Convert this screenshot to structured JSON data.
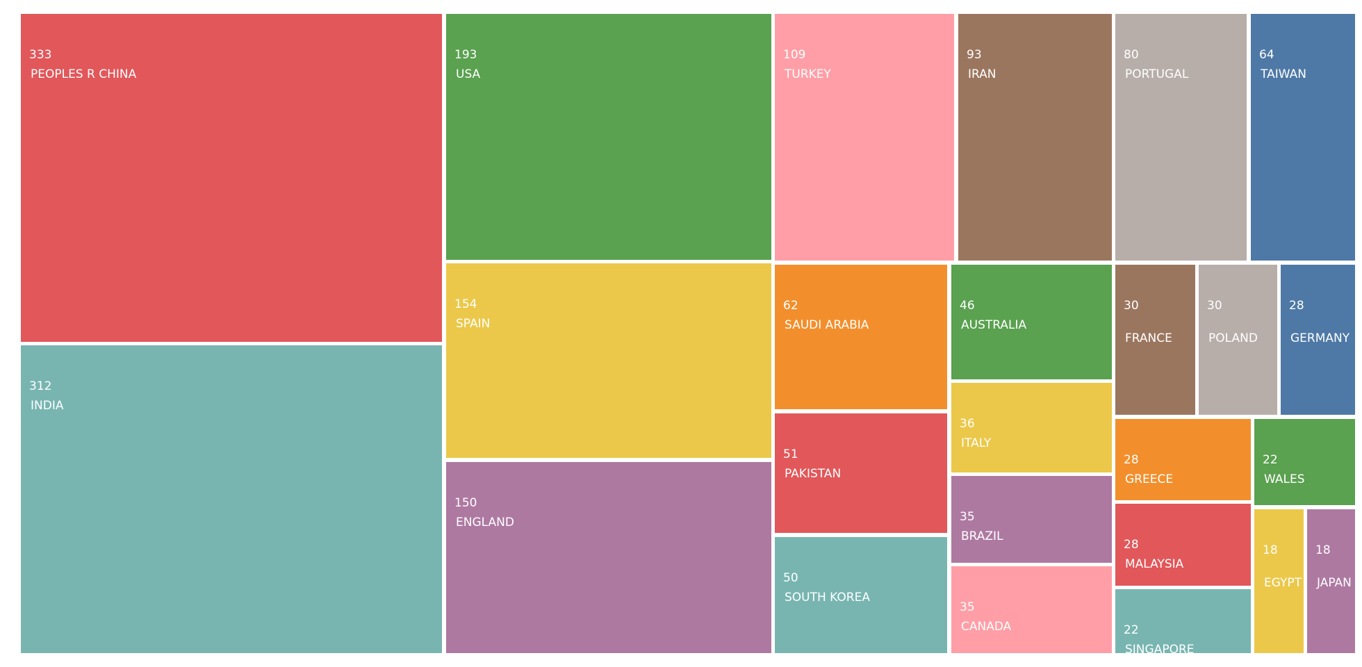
{
  "chart_data": {
    "type": "treemap",
    "title": "",
    "palette": {
      "red": "#e1575a",
      "teal": "#78b5b1",
      "green": "#5aa150",
      "yellow": "#ebc84a",
      "purple": "#ad79a1",
      "pink": "#ff9ea6",
      "brown": "#9b765f",
      "gray": "#b7aea9",
      "blue": "#4e79a6",
      "orange": "#f28f2c"
    },
    "items": [
      {
        "label": "PEOPLES R CHINA",
        "value": 333,
        "color": "#e1575a"
      },
      {
        "label": "INDIA",
        "value": 312,
        "color": "#78b5b1"
      },
      {
        "label": "USA",
        "value": 193,
        "color": "#5aa150"
      },
      {
        "label": "SPAIN",
        "value": 154,
        "color": "#ebc84a"
      },
      {
        "label": "ENGLAND",
        "value": 150,
        "color": "#ad79a1"
      },
      {
        "label": "TURKEY",
        "value": 109,
        "color": "#ff9ea6"
      },
      {
        "label": "IRAN",
        "value": 93,
        "color": "#9b765f"
      },
      {
        "label": "PORTUGAL",
        "value": 80,
        "color": "#b7aea9"
      },
      {
        "label": "TAIWAN",
        "value": 64,
        "color": "#4e79a6"
      },
      {
        "label": "SAUDI ARABIA",
        "value": 62,
        "color": "#f28f2c"
      },
      {
        "label": "PAKISTAN",
        "value": 51,
        "color": "#e1575a"
      },
      {
        "label": "SOUTH KOREA",
        "value": 50,
        "color": "#78b5b1"
      },
      {
        "label": "AUSTRALIA",
        "value": 46,
        "color": "#5aa150"
      },
      {
        "label": "ITALY",
        "value": 36,
        "color": "#ebc84a"
      },
      {
        "label": "BRAZIL",
        "value": 35,
        "color": "#ad79a1"
      },
      {
        "label": "CANADA",
        "value": 35,
        "color": "#ff9ea6"
      },
      {
        "label": "FRANCE",
        "value": 30,
        "color": "#9b765f"
      },
      {
        "label": "POLAND",
        "value": 30,
        "color": "#b7aea9"
      },
      {
        "label": "GERMANY",
        "value": 28,
        "color": "#4e79a6"
      },
      {
        "label": "GREECE",
        "value": 28,
        "color": "#f28f2c"
      },
      {
        "label": "MALAYSIA",
        "value": 28,
        "color": "#e1575a"
      },
      {
        "label": "SINGAPORE",
        "value": 22,
        "color": "#78b5b1"
      },
      {
        "label": "WALES",
        "value": 22,
        "color": "#5aa150"
      },
      {
        "label": "EGYPT",
        "value": 18,
        "color": "#ebc84a"
      },
      {
        "label": "JAPAN",
        "value": 18,
        "color": "#ad79a1"
      }
    ]
  }
}
